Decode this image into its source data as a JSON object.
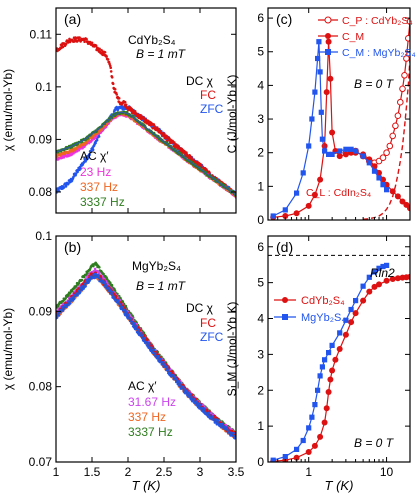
{
  "chart_data": [
    {
      "type": "scatter",
      "panel_label": "(a)",
      "sample": "CdYb₂S₄",
      "field": "B = 1 mT",
      "xlabel": "",
      "ylabel": "χ (emu/mol-Yb)",
      "xlim": [
        1,
        3.5
      ],
      "ylim": [
        0.076,
        0.115
      ],
      "x_ticks": [
        1,
        1.5,
        2,
        2.5,
        3,
        3.5
      ],
      "y_ticks": [
        0.08,
        0.09,
        0.1,
        0.11
      ],
      "y_tick_labels": [
        "0.08",
        "0.09",
        "0.1",
        "0.11"
      ],
      "dc_title": "DC χ",
      "ac_title": "AC χ′",
      "series": [
        {
          "name": "FC",
          "kind": "DC",
          "color": "#dd1111",
          "x": [
            1.0,
            1.1,
            1.2,
            1.3,
            1.4,
            1.5,
            1.6,
            1.7,
            1.75,
            1.8,
            1.85,
            1.9,
            1.95,
            2.0,
            2.1,
            2.2,
            2.4,
            2.6,
            2.8,
            3.0,
            3.2,
            3.4,
            3.5
          ],
          "y": [
            0.107,
            0.108,
            0.109,
            0.109,
            0.109,
            0.108,
            0.107,
            0.106,
            0.104,
            0.1,
            0.098,
            0.097,
            0.097,
            0.096,
            0.095,
            0.094,
            0.092,
            0.0895,
            0.0872,
            0.085,
            0.0825,
            0.0805,
            0.0795
          ]
        },
        {
          "name": "ZFC",
          "kind": "DC",
          "color": "#2255ee",
          "x": [
            1.0,
            1.1,
            1.2,
            1.3,
            1.4,
            1.5,
            1.6,
            1.7,
            1.8,
            1.85,
            1.9,
            2.0,
            2.2,
            2.4,
            2.6,
            2.8,
            3.0,
            3.2,
            3.4,
            3.5
          ],
          "y": [
            0.08,
            0.081,
            0.082,
            0.084,
            0.086,
            0.088,
            0.091,
            0.093,
            0.095,
            0.096,
            0.096,
            0.096,
            0.094,
            0.092,
            0.0895,
            0.0872,
            0.085,
            0.0825,
            0.0805,
            0.0795
          ]
        },
        {
          "name": "23 Hz",
          "kind": "AC",
          "color": "#ee33dd",
          "x": [
            1.0,
            1.2,
            1.4,
            1.6,
            1.8,
            1.9,
            2.0,
            2.2,
            2.4,
            2.6,
            2.8,
            3.0,
            3.2,
            3.4,
            3.5
          ],
          "y": [
            0.0862,
            0.0872,
            0.0888,
            0.0912,
            0.0942,
            0.0948,
            0.0945,
            0.0925,
            0.0903,
            0.0883,
            0.0862,
            0.0842,
            0.0822,
            0.0802,
            0.0792
          ]
        },
        {
          "name": "337 Hz",
          "kind": "AC",
          "color": "#ee6622",
          "x": [
            1.0,
            1.2,
            1.4,
            1.6,
            1.8,
            1.9,
            2.0,
            2.2,
            2.4,
            2.6,
            2.8,
            3.0,
            3.2,
            3.4,
            3.5
          ],
          "y": [
            0.0868,
            0.0878,
            0.0893,
            0.0916,
            0.0944,
            0.095,
            0.0947,
            0.0926,
            0.0904,
            0.0884,
            0.0863,
            0.0843,
            0.0823,
            0.0803,
            0.0793
          ]
        },
        {
          "name": "3337 Hz",
          "kind": "AC",
          "color": "#2e7d1e",
          "x": [
            1.0,
            1.2,
            1.4,
            1.6,
            1.8,
            1.9,
            2.0,
            2.2,
            2.4,
            2.6,
            2.8,
            3.0,
            3.2,
            3.4,
            3.5
          ],
          "y": [
            0.0876,
            0.0886,
            0.09,
            0.0921,
            0.0946,
            0.0952,
            0.0949,
            0.0928,
            0.0906,
            0.0885,
            0.0864,
            0.0844,
            0.0824,
            0.0804,
            0.0794
          ]
        }
      ]
    },
    {
      "type": "scatter",
      "panel_label": "(b)",
      "sample": "MgYb₂S₄",
      "field": "B = 1 mT",
      "xlabel": "T (K)",
      "ylabel": "χ (emu/mol-Yb)",
      "xlim": [
        1,
        3.5
      ],
      "ylim": [
        0.07,
        0.1
      ],
      "x_ticks": [
        1,
        1.5,
        2,
        2.5,
        3,
        3.5
      ],
      "y_ticks": [
        0.07,
        0.08,
        0.09,
        0.1
      ],
      "y_tick_labels": [
        "0.07",
        "0.08",
        "0.09",
        "0.1"
      ],
      "dc_title": "DC χ",
      "ac_title": "AC χ′",
      "series": [
        {
          "name": "FC",
          "kind": "DC",
          "color": "#dd1111",
          "x": [
            1.0,
            1.2,
            1.4,
            1.5,
            1.55,
            1.6,
            1.8,
            2.0,
            2.2,
            2.4,
            2.6,
            2.8,
            3.0,
            3.2,
            3.4,
            3.5
          ],
          "y": [
            0.0895,
            0.0915,
            0.0937,
            0.0948,
            0.095,
            0.0946,
            0.0922,
            0.0895,
            0.0868,
            0.0842,
            0.0818,
            0.0795,
            0.0775,
            0.0758,
            0.0742,
            0.0735
          ]
        },
        {
          "name": "ZFC",
          "kind": "DC",
          "color": "#2255ee",
          "x": [
            1.0,
            1.2,
            1.4,
            1.5,
            1.55,
            1.6,
            1.8,
            2.0,
            2.2,
            2.4,
            2.6,
            2.8,
            3.0,
            3.2,
            3.4,
            3.5
          ],
          "y": [
            0.0893,
            0.0913,
            0.0935,
            0.0946,
            0.0948,
            0.0944,
            0.092,
            0.0893,
            0.0866,
            0.084,
            0.0816,
            0.0793,
            0.0773,
            0.0756,
            0.074,
            0.0733
          ]
        },
        {
          "name": "31.67 Hz",
          "kind": "AC",
          "color": "#cc44ee",
          "x": [
            1.0,
            1.2,
            1.4,
            1.5,
            1.55,
            1.6,
            1.8,
            2.0,
            2.2,
            2.4,
            2.6,
            2.8,
            3.0,
            3.2,
            3.4,
            3.5
          ],
          "y": [
            0.0898,
            0.0918,
            0.094,
            0.0952,
            0.0955,
            0.095,
            0.0925,
            0.0897,
            0.087,
            0.0844,
            0.082,
            0.0797,
            0.0777,
            0.076,
            0.0744,
            0.0737
          ]
        },
        {
          "name": "337 Hz",
          "kind": "AC",
          "color": "#ee6622",
          "x": [
            1.0,
            1.2,
            1.4,
            1.5,
            1.55,
            1.6,
            1.8,
            2.0,
            2.2,
            2.4,
            2.6,
            2.8,
            3.0,
            3.2,
            3.4,
            3.5
          ],
          "y": [
            0.0892,
            0.0912,
            0.0934,
            0.0945,
            0.0947,
            0.0943,
            0.0919,
            0.0892,
            0.0865,
            0.0839,
            0.0815,
            0.0792,
            0.0772,
            0.0755,
            0.0739,
            0.0732
          ]
        },
        {
          "name": "3337 Hz",
          "kind": "AC",
          "color": "#2e7d1e",
          "x": [
            1.0,
            1.2,
            1.4,
            1.5,
            1.55,
            1.6,
            1.8,
            2.0,
            2.2,
            2.4,
            2.6,
            2.8,
            3.0,
            3.2,
            3.4,
            3.5
          ],
          "y": [
            0.0905,
            0.0925,
            0.0948,
            0.096,
            0.0963,
            0.0957,
            0.093,
            0.0901,
            0.0873,
            0.0846,
            0.0821,
            0.0798,
            0.0778,
            0.0761,
            0.0745,
            0.0738
          ]
        }
      ]
    },
    {
      "type": "line",
      "panel_label": "(c)",
      "field": "B = 0 T",
      "xlabel": "",
      "ylabel": "C (J/mol-Yb K)",
      "x_scale": "log",
      "xlim": [
        0.3,
        20
      ],
      "ylim": [
        0,
        6.3
      ],
      "x_ticks": [
        1,
        10
      ],
      "x_tick_labels": [
        "1",
        "10"
      ],
      "y_ticks": [
        0,
        1,
        2,
        3,
        4,
        5,
        6
      ],
      "series": [
        {
          "name": "C_P : CdYb₂S₄",
          "color": "#dd1111",
          "marker": "open-circle",
          "x": [
            3.0,
            3.5,
            4.0,
            5.0,
            6.0,
            7.0,
            8.0,
            9.0,
            10.0,
            11.0,
            12.0,
            13.0,
            14.0,
            15.0,
            16.0,
            17.0,
            18.0,
            19.0,
            20.0
          ],
          "y": [
            2.0,
            2.05,
            2.05,
            1.9,
            1.75,
            1.7,
            1.75,
            1.85,
            2.0,
            2.2,
            2.5,
            2.8,
            3.1,
            3.5,
            3.9,
            4.3,
            4.8,
            5.4,
            5.9
          ]
        },
        {
          "name": "C_M",
          "color": "#dd1111",
          "marker": "filled-circle",
          "x": [
            0.35,
            0.5,
            0.7,
            1.0,
            1.2,
            1.4,
            1.6,
            1.7,
            1.8,
            1.9,
            2.0,
            2.2,
            2.5,
            3.0,
            3.5,
            4.0,
            5.0,
            6.0,
            7.0,
            8.0,
            9.0,
            10.0,
            12.0,
            14.0,
            16.0,
            18.0,
            20.0
          ],
          "y": [
            0.08,
            0.12,
            0.2,
            0.42,
            0.75,
            1.2,
            2.2,
            3.8,
            5.3,
            4.2,
            2.6,
            2.05,
            1.9,
            1.95,
            2.0,
            2.0,
            1.95,
            1.8,
            1.6,
            1.4,
            1.2,
            1.05,
            0.85,
            0.7,
            0.55,
            0.45,
            0.35
          ]
        },
        {
          "name": "C_M : MgYb₂S₄",
          "color": "#2255ee",
          "marker": "filled-square",
          "x": [
            0.35,
            0.5,
            0.7,
            0.85,
            1.0,
            1.1,
            1.2,
            1.3,
            1.35,
            1.4,
            1.45,
            1.5,
            1.6,
            1.8,
            2.0,
            2.5,
            3.0,
            3.5,
            4.0,
            5.0,
            6.0,
            7.0,
            8.0,
            9.0,
            10.0
          ],
          "y": [
            0.12,
            0.3,
            0.8,
            1.4,
            2.2,
            3.0,
            3.8,
            4.8,
            5.3,
            4.4,
            3.2,
            2.4,
            2.05,
            1.95,
            1.95,
            2.05,
            2.1,
            2.1,
            2.05,
            1.9,
            1.7,
            1.45,
            1.25,
            1.05,
            0.9
          ]
        },
        {
          "name": "C_L : CdIn₂S₄",
          "color": "#dd1111",
          "marker": "dashed",
          "x": [
            5.0,
            6.0,
            7.0,
            8.0,
            9.0,
            10.0,
            11.0,
            12.0,
            13.0,
            14.0,
            15.0,
            16.0,
            17.0,
            18.0,
            19.0,
            20.0
          ],
          "y": [
            0.02,
            0.04,
            0.07,
            0.12,
            0.2,
            0.32,
            0.48,
            0.7,
            1.0,
            1.35,
            1.75,
            2.2,
            2.75,
            3.35,
            4.0,
            4.8
          ]
        }
      ]
    },
    {
      "type": "line",
      "panel_label": "(d)",
      "field": "B = 0 T",
      "reference_line": {
        "label": "Rln2",
        "y": 5.76
      },
      "xlabel": "T (K)",
      "ylabel": "S_M (J/mol-Yb K)",
      "x_scale": "log",
      "xlim": [
        0.3,
        20
      ],
      "ylim": [
        0,
        6.3
      ],
      "x_ticks": [
        1,
        10
      ],
      "x_tick_labels": [
        "1",
        "10"
      ],
      "y_ticks": [
        0,
        1,
        2,
        3,
        4,
        5,
        6
      ],
      "series": [
        {
          "name": "CdYb₂S₄",
          "color": "#dd1111",
          "marker": "filled-circle",
          "x": [
            0.35,
            0.5,
            0.7,
            1.0,
            1.2,
            1.4,
            1.6,
            1.7,
            1.8,
            1.9,
            2.0,
            2.2,
            2.5,
            3.0,
            3.5,
            4.0,
            5.0,
            6.0,
            7.0,
            8.0,
            10.0,
            12.0,
            14.0,
            16.0,
            18.0,
            20.0
          ],
          "y": [
            0.02,
            0.05,
            0.12,
            0.28,
            0.45,
            0.7,
            1.1,
            1.5,
            1.95,
            2.3,
            2.55,
            2.85,
            3.15,
            3.55,
            3.9,
            4.15,
            4.5,
            4.75,
            4.88,
            4.95,
            5.05,
            5.1,
            5.12,
            5.14,
            5.15,
            5.16
          ]
        },
        {
          "name": "MgYb₂S₄",
          "color": "#2255ee",
          "marker": "filled-square",
          "x": [
            0.35,
            0.5,
            0.7,
            0.85,
            1.0,
            1.1,
            1.2,
            1.3,
            1.4,
            1.5,
            1.6,
            1.8,
            2.0,
            2.5,
            3.0,
            3.5,
            4.0,
            5.0,
            6.0,
            7.0,
            8.0,
            9.0,
            10.0
          ],
          "y": [
            0.05,
            0.15,
            0.35,
            0.6,
            0.95,
            1.25,
            1.6,
            2.0,
            2.4,
            2.65,
            2.85,
            3.05,
            3.25,
            3.6,
            3.95,
            4.25,
            4.5,
            4.9,
            5.15,
            5.3,
            5.4,
            5.45,
            5.48
          ]
        }
      ]
    }
  ]
}
